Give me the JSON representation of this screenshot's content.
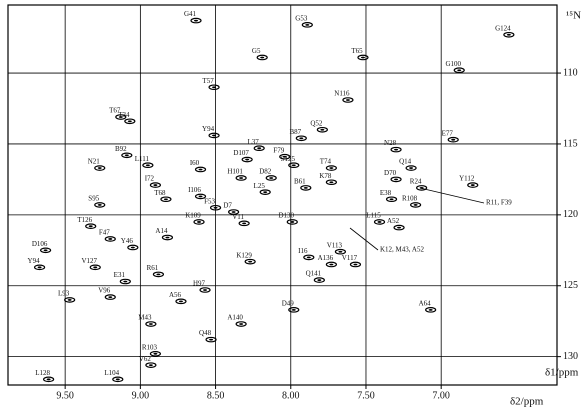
{
  "chart_data": {
    "type": "scatter",
    "x_label": "δ2/ppm",
    "y_label": "δ1/ppm",
    "y_nucleus": "¹⁵N",
    "xlim": [
      9.88,
      6.23
    ],
    "ylim": [
      105.2,
      132
    ],
    "xticks": [
      {
        "value": 9.5,
        "label": "9.50"
      },
      {
        "value": 9.0,
        "label": "9.00"
      },
      {
        "value": 8.5,
        "label": "8.50"
      },
      {
        "value": 8.0,
        "label": "8.00"
      },
      {
        "value": 7.5,
        "label": "7.50"
      },
      {
        "value": 7.0,
        "label": "7.00"
      }
    ],
    "yticks": [
      110,
      115,
      120,
      125,
      130
    ],
    "grid": true,
    "color": "#000000",
    "labels": [
      "G41",
      "G53",
      "G5",
      "T65",
      "G124",
      "G100",
      "T57",
      "N116",
      "T67",
      "T34",
      "Y94",
      "Q52",
      "B87",
      "L37",
      "E77",
      "B92",
      "N21",
      "L111",
      "I60",
      "D107",
      "F79",
      "S125",
      "T74",
      "N28",
      "Q14",
      "Y112",
      "I72",
      "H101",
      "D82",
      "K78",
      "R24",
      "T68",
      "I106",
      "L25",
      "B61",
      "E38",
      "R108",
      "F53",
      "D7",
      "S95",
      "T126",
      "F47",
      "Y46",
      "A14",
      "K109",
      "V11",
      "D130",
      "D106",
      "V127",
      "Y94",
      "K129",
      "L93",
      "V96",
      "E31",
      "A56",
      "H97",
      "R61",
      "M43",
      "A140",
      "D49",
      "Q48",
      "A64",
      "R103",
      "L128",
      "L104",
      "V62",
      "A136",
      "I16",
      "V113",
      "V117",
      "Q141",
      "L115",
      "A52",
      "D70"
    ],
    "x": [
      8.63,
      7.89,
      8.19,
      7.52,
      6.55,
      6.88,
      8.51,
      7.62,
      9.13,
      9.07,
      8.51,
      7.79,
      7.93,
      8.21,
      6.92,
      9.09,
      9.27,
      8.95,
      8.6,
      8.29,
      8.04,
      7.98,
      7.73,
      7.3,
      7.2,
      6.79,
      8.9,
      8.33,
      8.13,
      7.73,
      7.13,
      8.83,
      8.6,
      8.17,
      7.9,
      7.33,
      7.17,
      8.5,
      8.38,
      9.27,
      9.33,
      9.2,
      9.05,
      8.82,
      8.61,
      8.31,
      7.99,
      9.63,
      9.3,
      9.67,
      8.27,
      9.47,
      9.2,
      9.1,
      8.73,
      8.57,
      8.88,
      8.93,
      8.33,
      7.98,
      8.53,
      7.07,
      8.9,
      9.61,
      9.15,
      8.93,
      7.73,
      7.88,
      7.67,
      7.57,
      7.81,
      7.41,
      7.28,
      7.3
    ],
    "y": [
      106.3,
      106.6,
      108.9,
      108.9,
      107.3,
      109.8,
      111.0,
      111.9,
      113.1,
      113.4,
      114.4,
      114.0,
      114.6,
      115.3,
      114.7,
      115.8,
      116.7,
      116.5,
      116.8,
      116.1,
      115.9,
      116.5,
      116.7,
      115.4,
      116.7,
      117.9,
      117.9,
      117.4,
      117.4,
      117.7,
      118.1,
      118.9,
      118.7,
      118.4,
      118.1,
      118.9,
      119.3,
      119.5,
      119.8,
      119.3,
      120.8,
      121.7,
      122.3,
      121.6,
      120.5,
      120.6,
      120.5,
      122.5,
      123.7,
      123.7,
      123.3,
      126.0,
      125.8,
      124.7,
      126.1,
      125.3,
      124.2,
      127.7,
      127.7,
      126.7,
      128.8,
      126.7,
      129.8,
      131.6,
      131.6,
      130.6,
      123.5,
      123.0,
      122.6,
      123.5,
      124.6,
      120.5,
      120.9,
      117.5
    ],
    "annotations": [
      "R11, F39",
      "K12, M43, A52"
    ]
  }
}
